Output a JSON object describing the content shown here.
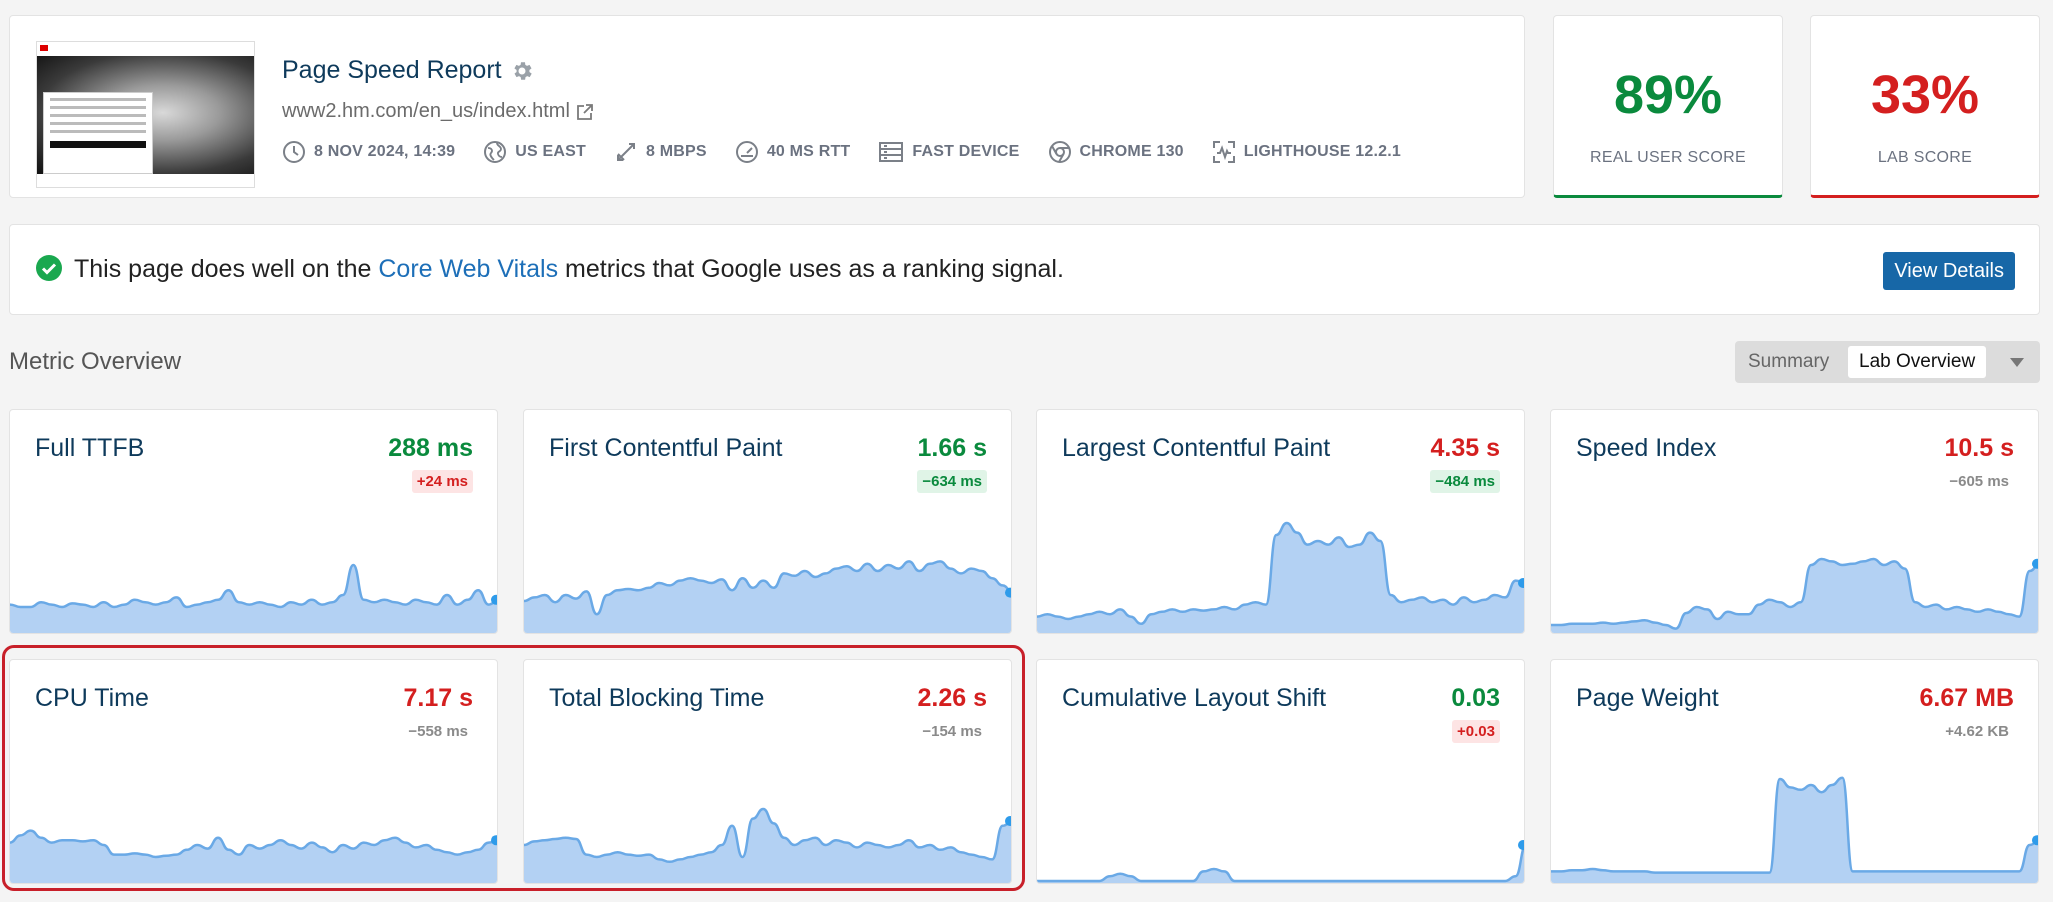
{
  "report": {
    "title": "Page Speed Report",
    "url": "www2.hm.com/en_us/index.html",
    "meta": [
      {
        "icon": "clock-icon",
        "label": "8 NOV 2024, 14:39"
      },
      {
        "icon": "globe-icon",
        "label": "US EAST"
      },
      {
        "icon": "bandwidth-icon",
        "label": "8 MBPS"
      },
      {
        "icon": "gauge-icon",
        "label": "40 MS RTT"
      },
      {
        "icon": "device-icon",
        "label": "FAST DEVICE"
      },
      {
        "icon": "chrome-icon",
        "label": "CHROME 130"
      },
      {
        "icon": "lighthouse-icon",
        "label": "LIGHTHOUSE 12.2.1"
      }
    ]
  },
  "scores": {
    "real": {
      "value": "89%",
      "label": "REAL USER SCORE",
      "color": "#0a8a3d"
    },
    "lab": {
      "value": "33%",
      "label": "LAB SCORE",
      "color": "#d41f1f"
    }
  },
  "cwv": {
    "prefix": "This page does well on the ",
    "link": "Core Web Vitals",
    "suffix": " metrics that Google uses as a ranking signal.",
    "button": "View Details"
  },
  "overview": {
    "title": "Metric Overview",
    "toggle": [
      "Summary",
      "Lab Overview"
    ]
  },
  "metrics": [
    {
      "name": "Full TTFB",
      "value": "288 ms",
      "status": "good",
      "delta": "+24 ms",
      "delta_status": "bad",
      "spark": [
        0.22,
        0.2,
        0.2,
        0.24,
        0.22,
        0.2,
        0.23,
        0.22,
        0.2,
        0.24,
        0.2,
        0.22,
        0.26,
        0.24,
        0.22,
        0.24,
        0.28,
        0.2,
        0.22,
        0.24,
        0.26,
        0.34,
        0.24,
        0.22,
        0.24,
        0.22,
        0.2,
        0.24,
        0.22,
        0.26,
        0.22,
        0.24,
        0.3,
        0.55,
        0.26,
        0.24,
        0.26,
        0.24,
        0.22,
        0.26,
        0.24,
        0.22,
        0.3,
        0.22,
        0.26,
        0.34,
        0.22,
        0.26
      ]
    },
    {
      "name": "First Contentful Paint",
      "value": "1.66 s",
      "status": "good",
      "delta": "−634 ms",
      "delta_status": "good",
      "spark": [
        0.25,
        0.28,
        0.3,
        0.24,
        0.3,
        0.27,
        0.33,
        0.14,
        0.3,
        0.34,
        0.35,
        0.34,
        0.36,
        0.4,
        0.38,
        0.42,
        0.44,
        0.42,
        0.4,
        0.43,
        0.34,
        0.44,
        0.36,
        0.42,
        0.36,
        0.48,
        0.46,
        0.5,
        0.45,
        0.48,
        0.52,
        0.54,
        0.5,
        0.56,
        0.5,
        0.55,
        0.52,
        0.58,
        0.5,
        0.56,
        0.58,
        0.52,
        0.48,
        0.52,
        0.5,
        0.44,
        0.38,
        0.32
      ]
    },
    {
      "name": "Largest Contentful Paint",
      "value": "4.35 s",
      "status": "bad",
      "delta": "−484 ms",
      "delta_status": "good",
      "spark": [
        0.12,
        0.14,
        0.12,
        0.1,
        0.12,
        0.14,
        0.16,
        0.14,
        0.18,
        0.12,
        0.06,
        0.14,
        0.16,
        0.18,
        0.16,
        0.18,
        0.17,
        0.18,
        0.2,
        0.18,
        0.22,
        0.24,
        0.22,
        0.8,
        0.9,
        0.82,
        0.72,
        0.75,
        0.72,
        0.78,
        0.7,
        0.72,
        0.82,
        0.75,
        0.3,
        0.24,
        0.26,
        0.28,
        0.24,
        0.26,
        0.22,
        0.28,
        0.24,
        0.26,
        0.3,
        0.28,
        0.42,
        0.4
      ]
    },
    {
      "name": "Speed Index",
      "value": "10.5 s",
      "status": "bad",
      "delta": "−605 ms",
      "delta_status": "neutral",
      "spark": [
        0.05,
        0.05,
        0.06,
        0.06,
        0.06,
        0.07,
        0.06,
        0.07,
        0.08,
        0.09,
        0.07,
        0.05,
        0.02,
        0.15,
        0.2,
        0.18,
        0.1,
        0.16,
        0.14,
        0.14,
        0.22,
        0.26,
        0.24,
        0.2,
        0.24,
        0.55,
        0.6,
        0.58,
        0.55,
        0.56,
        0.58,
        0.6,
        0.55,
        0.58,
        0.52,
        0.24,
        0.2,
        0.22,
        0.18,
        0.2,
        0.18,
        0.16,
        0.18,
        0.16,
        0.14,
        0.12,
        0.5,
        0.56
      ]
    },
    {
      "name": "CPU Time",
      "value": "7.17 s",
      "status": "bad",
      "delta": "−558 ms",
      "delta_status": "neutral",
      "spark": [
        0.32,
        0.38,
        0.42,
        0.36,
        0.32,
        0.34,
        0.34,
        0.33,
        0.34,
        0.3,
        0.22,
        0.22,
        0.23,
        0.22,
        0.2,
        0.21,
        0.22,
        0.26,
        0.3,
        0.27,
        0.36,
        0.26,
        0.22,
        0.3,
        0.27,
        0.3,
        0.34,
        0.3,
        0.27,
        0.32,
        0.28,
        0.24,
        0.3,
        0.27,
        0.32,
        0.3,
        0.34,
        0.36,
        0.32,
        0.28,
        0.3,
        0.26,
        0.24,
        0.22,
        0.24,
        0.26,
        0.32,
        0.34
      ]
    },
    {
      "name": "Total Blocking Time",
      "value": "2.26 s",
      "status": "bad",
      "delta": "−154 ms",
      "delta_status": "neutral",
      "spark": [
        0.3,
        0.33,
        0.34,
        0.35,
        0.36,
        0.35,
        0.22,
        0.2,
        0.22,
        0.24,
        0.22,
        0.21,
        0.22,
        0.18,
        0.16,
        0.18,
        0.2,
        0.22,
        0.24,
        0.3,
        0.46,
        0.2,
        0.52,
        0.6,
        0.48,
        0.36,
        0.3,
        0.34,
        0.36,
        0.3,
        0.34,
        0.32,
        0.28,
        0.32,
        0.3,
        0.28,
        0.3,
        0.34,
        0.28,
        0.3,
        0.26,
        0.28,
        0.24,
        0.22,
        0.2,
        0.18,
        0.46,
        0.5
      ]
    },
    {
      "name": "Cumulative Layout Shift",
      "value": "0.03",
      "status": "good",
      "delta": "+0.03",
      "delta_status": "bad",
      "spark": [
        0.0,
        0.0,
        0.0,
        0.0,
        0.0,
        0.0,
        0.0,
        0.04,
        0.06,
        0.04,
        0.0,
        0.0,
        0.0,
        0.0,
        0.0,
        0.0,
        0.08,
        0.1,
        0.08,
        0.0,
        0.0,
        0.0,
        0.0,
        0.0,
        0.0,
        0.0,
        0.0,
        0.0,
        0.0,
        0.0,
        0.0,
        0.0,
        0.0,
        0.0,
        0.0,
        0.0,
        0.0,
        0.0,
        0.0,
        0.0,
        0.0,
        0.0,
        0.0,
        0.0,
        0.0,
        0.0,
        0.04,
        0.3
      ]
    },
    {
      "name": "Page Weight",
      "value": "6.67 MB",
      "status": "bad",
      "delta": "+4.62 KB",
      "delta_status": "neutral",
      "spark": [
        0.08,
        0.08,
        0.09,
        0.09,
        0.1,
        0.09,
        0.08,
        0.08,
        0.08,
        0.08,
        0.07,
        0.07,
        0.07,
        0.07,
        0.07,
        0.07,
        0.07,
        0.07,
        0.07,
        0.07,
        0.07,
        0.07,
        0.85,
        0.78,
        0.76,
        0.8,
        0.74,
        0.8,
        0.86,
        0.08,
        0.08,
        0.08,
        0.08,
        0.08,
        0.08,
        0.08,
        0.08,
        0.08,
        0.08,
        0.08,
        0.08,
        0.08,
        0.08,
        0.08,
        0.08,
        0.08,
        0.3,
        0.34
      ]
    }
  ],
  "colors": {
    "spark_fill": "#b3d1f3",
    "spark_stroke": "#6aa9e6",
    "dot": "#2e9bea"
  }
}
